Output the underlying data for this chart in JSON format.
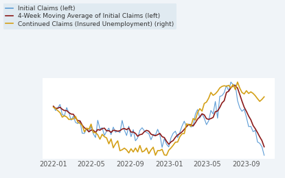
{
  "legend_labels": [
    "Initial Claims (left)",
    "4-Week Moving Average of Initial Claims (left)",
    "Continued Claims (Insured Unemployment) (right)"
  ],
  "legend_colors": [
    "#5b9bd5",
    "#8b1a1a",
    "#d4a017"
  ],
  "line_colors": [
    "#5b9bd5",
    "#8b1a1a",
    "#d4a017"
  ],
  "bg_color": "#f0f4f8",
  "plot_bg_color": "#ffffff",
  "legend_bg_color": "#dce8f0",
  "x_ticks": [
    "2022-01",
    "2022-05",
    "2022-09",
    "2023-01",
    "2023-05",
    "2023-09"
  ],
  "gridcolor": "#d0d8e0",
  "fontsize_legend": 6.5,
  "fontsize_tick": 7
}
